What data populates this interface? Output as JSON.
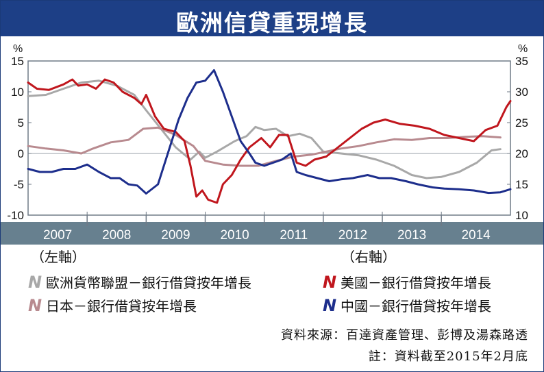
{
  "title": "歐洲信貸重現增長",
  "chart_data": {
    "type": "line",
    "title": "歐洲信貸重現增長",
    "left_axis": {
      "unit": "%",
      "ylim": [
        -10,
        15
      ],
      "ticks": [
        15,
        10,
        5,
        0,
        -5,
        -10
      ]
    },
    "right_axis": {
      "unit": "%",
      "ylim": [
        10,
        35
      ],
      "ticks": [
        35,
        30,
        25,
        20,
        15,
        10
      ]
    },
    "x_axis": {
      "xlim": [
        2007.0,
        2015.17
      ],
      "ticks": [
        "2007",
        "2008",
        "2009",
        "2010",
        "2011",
        "2012",
        "2013",
        "2014"
      ]
    },
    "series": [
      {
        "name": "歐洲貨幣聯盟－銀行借貸按年增長",
        "axis": "left",
        "color": "#a8a8a8",
        "points": [
          [
            2007.0,
            9.3
          ],
          [
            2007.3,
            9.5
          ],
          [
            2007.6,
            10.5
          ],
          [
            2007.9,
            11.5
          ],
          [
            2008.2,
            11.8
          ],
          [
            2008.5,
            11
          ],
          [
            2008.8,
            9.5
          ],
          [
            2009.0,
            7
          ],
          [
            2009.25,
            4
          ],
          [
            2009.5,
            1
          ],
          [
            2009.75,
            -1
          ],
          [
            2009.9,
            0.3
          ],
          [
            2010.0,
            -0.7
          ],
          [
            2010.2,
            0.3
          ],
          [
            2010.5,
            2
          ],
          [
            2010.7,
            2.8
          ],
          [
            2010.85,
            4.3
          ],
          [
            2011.0,
            3.8
          ],
          [
            2011.2,
            4
          ],
          [
            2011.4,
            2.8
          ],
          [
            2011.6,
            3.2
          ],
          [
            2011.8,
            2.5
          ],
          [
            2012.0,
            0.3
          ],
          [
            2012.3,
            0
          ],
          [
            2012.6,
            -0.3
          ],
          [
            2012.9,
            -1
          ],
          [
            2013.2,
            -2
          ],
          [
            2013.5,
            -3.5
          ],
          [
            2013.75,
            -4
          ],
          [
            2014.0,
            -3.8
          ],
          [
            2014.3,
            -3
          ],
          [
            2014.6,
            -1.5
          ],
          [
            2014.85,
            0.5
          ],
          [
            2015.0,
            0.7
          ]
        ]
      },
      {
        "name": "日本－銀行借貸按年增長",
        "axis": "left",
        "color": "#b88a8f",
        "points": [
          [
            2007.0,
            1.2
          ],
          [
            2007.3,
            0.8
          ],
          [
            2007.6,
            0.5
          ],
          [
            2007.9,
            0
          ],
          [
            2008.1,
            0.8
          ],
          [
            2008.4,
            1.8
          ],
          [
            2008.7,
            2.2
          ],
          [
            2008.95,
            4
          ],
          [
            2009.2,
            4.2
          ],
          [
            2009.5,
            3
          ],
          [
            2009.8,
            1.2
          ],
          [
            2010.0,
            -1.2
          ],
          [
            2010.3,
            -1.8
          ],
          [
            2010.6,
            -2
          ],
          [
            2010.9,
            -2
          ],
          [
            2011.2,
            -1.2
          ],
          [
            2011.5,
            -0.5
          ],
          [
            2011.8,
            -0.2
          ],
          [
            2012.0,
            0.2
          ],
          [
            2012.3,
            0.8
          ],
          [
            2012.6,
            1.2
          ],
          [
            2012.9,
            1.8
          ],
          [
            2013.2,
            2.3
          ],
          [
            2013.5,
            2.2
          ],
          [
            2013.8,
            2.5
          ],
          [
            2014.1,
            2.5
          ],
          [
            2014.4,
            2.7
          ],
          [
            2014.7,
            2.8
          ],
          [
            2015.0,
            2.6
          ]
        ]
      },
      {
        "name": "美國－銀行借貸按年增長",
        "axis": "right",
        "color": "#c0161d",
        "points": [
          [
            2007.0,
            31.5
          ],
          [
            2007.15,
            30.5
          ],
          [
            2007.35,
            30.3
          ],
          [
            2007.6,
            31.2
          ],
          [
            2007.75,
            32
          ],
          [
            2007.85,
            31
          ],
          [
            2008.0,
            31.2
          ],
          [
            2008.15,
            30.5
          ],
          [
            2008.3,
            32
          ],
          [
            2008.45,
            31.5
          ],
          [
            2008.6,
            30
          ],
          [
            2008.8,
            29
          ],
          [
            2008.92,
            28
          ],
          [
            2009.0,
            29.5
          ],
          [
            2009.15,
            26
          ],
          [
            2009.3,
            24
          ],
          [
            2009.5,
            23.5
          ],
          [
            2009.65,
            22
          ],
          [
            2009.75,
            18
          ],
          [
            2009.85,
            13
          ],
          [
            2009.95,
            14
          ],
          [
            2010.05,
            12.5
          ],
          [
            2010.2,
            12
          ],
          [
            2010.3,
            15
          ],
          [
            2010.45,
            16.5
          ],
          [
            2010.6,
            19
          ],
          [
            2010.75,
            21
          ],
          [
            2010.95,
            22.5
          ],
          [
            2011.1,
            21
          ],
          [
            2011.25,
            23
          ],
          [
            2011.4,
            23
          ],
          [
            2011.55,
            18.5
          ],
          [
            2011.7,
            18
          ],
          [
            2011.85,
            19
          ],
          [
            2012.05,
            19.5
          ],
          [
            2012.25,
            21
          ],
          [
            2012.45,
            22.5
          ],
          [
            2012.65,
            24
          ],
          [
            2012.85,
            25
          ],
          [
            2013.05,
            25.5
          ],
          [
            2013.3,
            24.8
          ],
          [
            2013.55,
            24.5
          ],
          [
            2013.8,
            24
          ],
          [
            2014.05,
            23
          ],
          [
            2014.3,
            22.5
          ],
          [
            2014.55,
            22
          ],
          [
            2014.75,
            23.8
          ],
          [
            2014.95,
            24.5
          ],
          [
            2015.1,
            27.5
          ],
          [
            2015.17,
            28.5
          ]
        ]
      },
      {
        "name": "中國－銀行借貸按年增長",
        "axis": "right",
        "color": "#1d2e8c",
        "points": [
          [
            2007.0,
            17.5
          ],
          [
            2007.2,
            17
          ],
          [
            2007.4,
            17
          ],
          [
            2007.6,
            17.5
          ],
          [
            2007.8,
            17.5
          ],
          [
            2008.0,
            18.2
          ],
          [
            2008.2,
            17
          ],
          [
            2008.4,
            16
          ],
          [
            2008.55,
            16
          ],
          [
            2008.7,
            15
          ],
          [
            2008.85,
            14.8
          ],
          [
            2009.0,
            13.5
          ],
          [
            2009.2,
            15
          ],
          [
            2009.4,
            21
          ],
          [
            2009.55,
            25.5
          ],
          [
            2009.7,
            29
          ],
          [
            2009.85,
            31.5
          ],
          [
            2010.0,
            31.8
          ],
          [
            2010.15,
            33.5
          ],
          [
            2010.3,
            30
          ],
          [
            2010.45,
            26
          ],
          [
            2010.6,
            22
          ],
          [
            2010.75,
            20
          ],
          [
            2010.85,
            18.5
          ],
          [
            2011.0,
            18
          ],
          [
            2011.15,
            18.5
          ],
          [
            2011.3,
            19
          ],
          [
            2011.45,
            20
          ],
          [
            2011.55,
            17
          ],
          [
            2011.7,
            16.5
          ],
          [
            2011.9,
            16
          ],
          [
            2012.1,
            15.5
          ],
          [
            2012.3,
            15.8
          ],
          [
            2012.5,
            16
          ],
          [
            2012.75,
            16.5
          ],
          [
            2012.95,
            16
          ],
          [
            2013.15,
            16
          ],
          [
            2013.4,
            15.5
          ],
          [
            2013.6,
            15
          ],
          [
            2013.85,
            14.5
          ],
          [
            2014.05,
            14.3
          ],
          [
            2014.3,
            14.2
          ],
          [
            2014.55,
            14
          ],
          [
            2014.8,
            13.6
          ],
          [
            2015.0,
            13.7
          ],
          [
            2015.17,
            14.2
          ]
        ]
      }
    ],
    "legend_placement": "bottom"
  },
  "legend": {
    "left_axis_label": "（左軸）",
    "right_axis_label": "（右軸）",
    "items": [
      {
        "label": "歐洲貨幣聯盟－銀行借貸按年增長",
        "color": "#a8a8a8",
        "glyph": "N"
      },
      {
        "label": "美國－銀行借貸按年增長",
        "color": "#c0161d",
        "glyph": "N"
      },
      {
        "label": "日本－銀行借貸按年增長",
        "color": "#b88a8f",
        "glyph": "N"
      },
      {
        "label": "中國－銀行借貸按年增長",
        "color": "#1d2e8c",
        "glyph": "N"
      }
    ]
  },
  "source": "資料來源：百達資產管理、彭博及湯森路透",
  "note": "註：資料截至2015年2月底"
}
